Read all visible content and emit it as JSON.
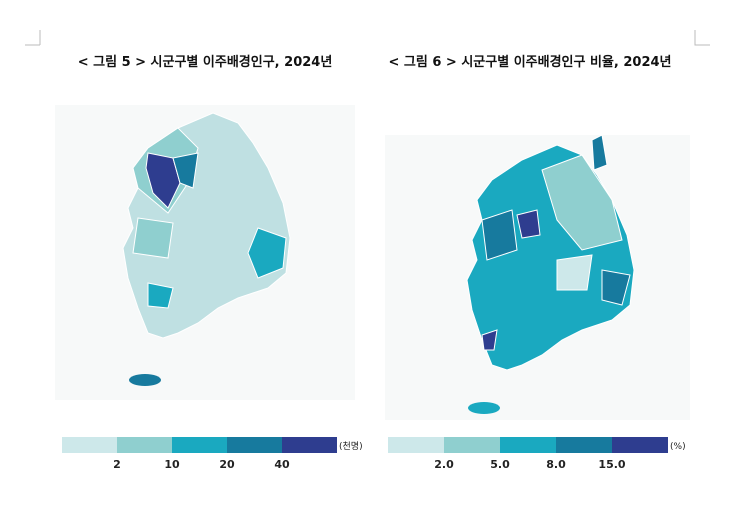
{
  "figures": [
    {
      "caption": "< 그림 5 > 시군구별 이주배경인구, 2024년",
      "legend": {
        "unit": "(천명)",
        "breaks": [
          "2",
          "10",
          "20",
          "40"
        ],
        "colors": [
          "#cde8ea",
          "#8fcfcf",
          "#1aa9c0",
          "#177a9e",
          "#2e3d8f"
        ]
      }
    },
    {
      "caption": "< 그림 6 > 시군구별 이주배경인구 비율, 2024년",
      "legend": {
        "unit": "(%)",
        "breaks": [
          "2.0",
          "5.0",
          "8.0",
          "15.0"
        ],
        "colors": [
          "#cde8ea",
          "#8fcfcf",
          "#1aa9c0",
          "#177a9e",
          "#2e3d8f"
        ]
      }
    }
  ]
}
